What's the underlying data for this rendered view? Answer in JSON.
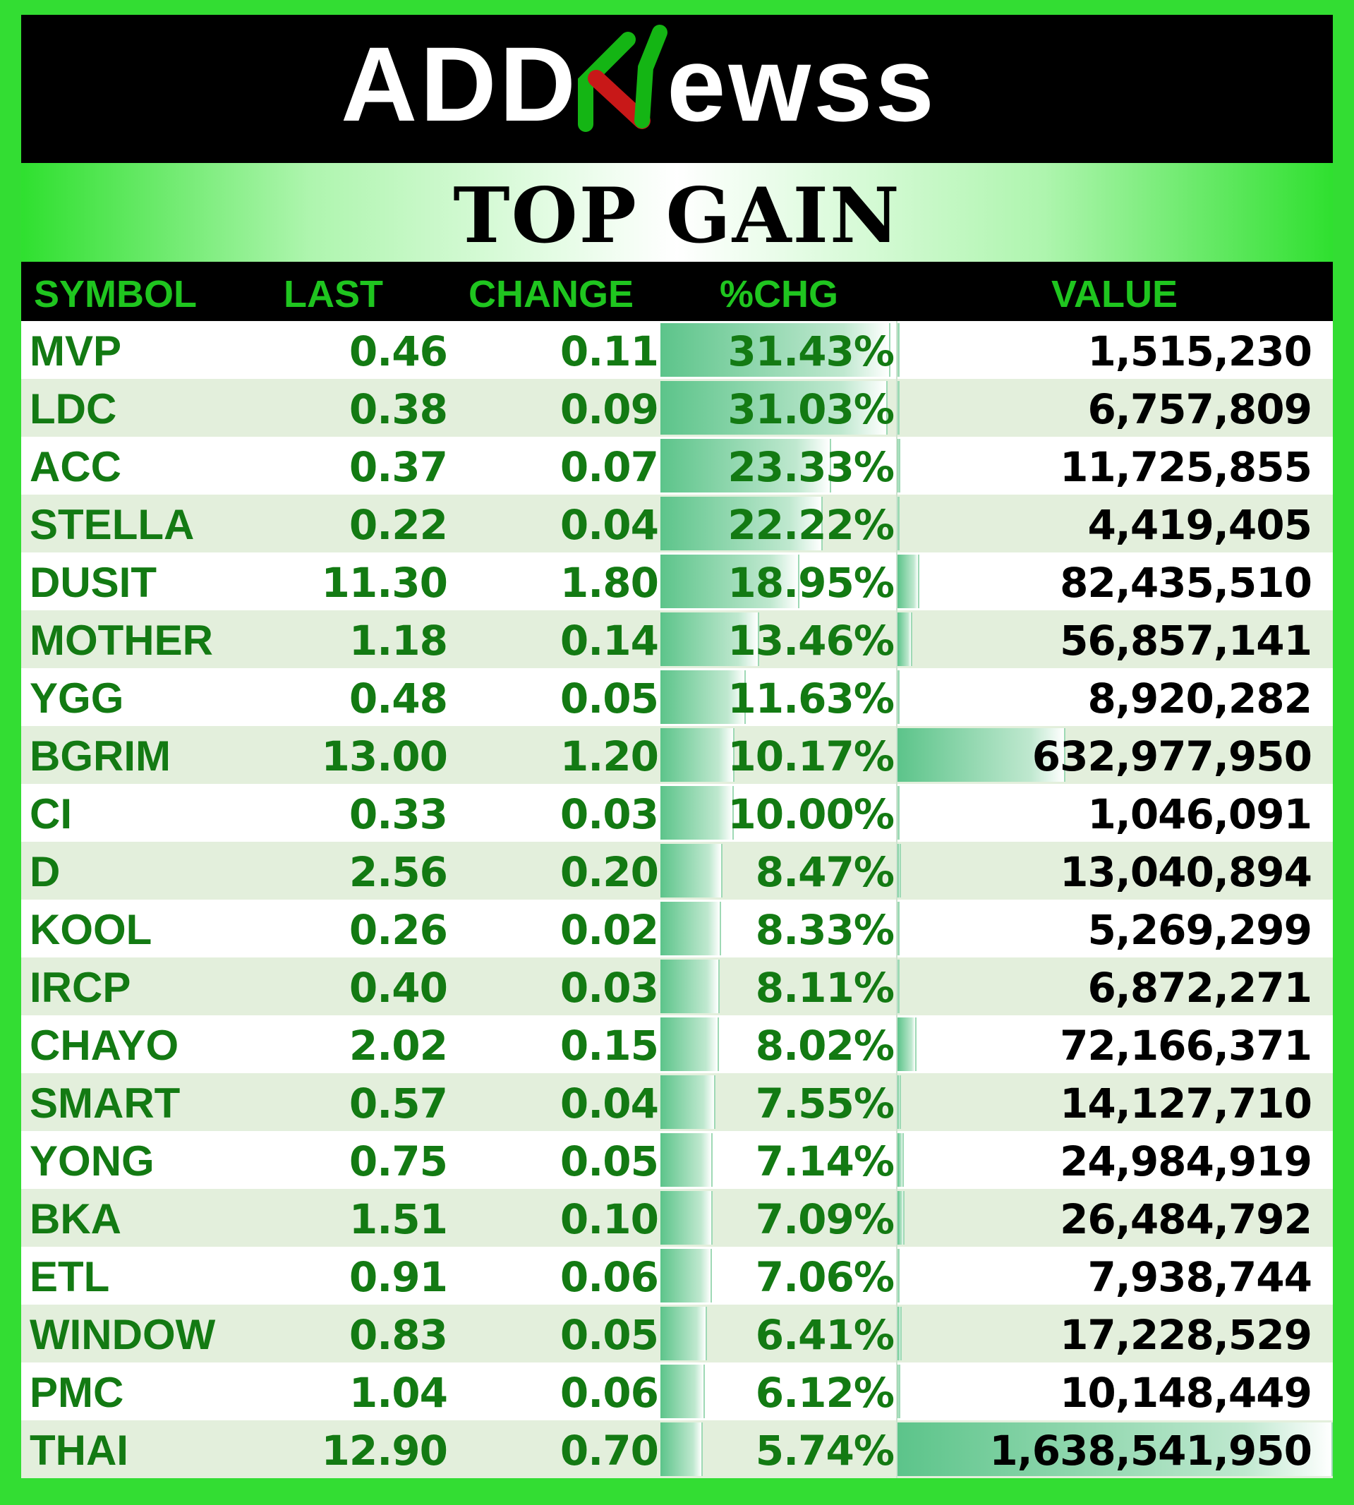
{
  "brand": {
    "logo_text_left": "ADD",
    "logo_text_right": "ewss",
    "logo_accent_red": "#d21a1a",
    "logo_accent_green": "#14b514"
  },
  "title": "TOP GAIN",
  "columns": {
    "symbol": "SYMBOL",
    "last": "LAST",
    "change": "CHANGE",
    "pct": "%CHG",
    "value": "VALUE"
  },
  "colors": {
    "frame_green": "#33dd33",
    "text_green": "#137a13",
    "header_green": "#1fc51f",
    "row_alt": "#e3efdc"
  },
  "rows": [
    {
      "symbol": "MVP",
      "last": "0.46",
      "change": "0.11",
      "pct": "31.43%",
      "value": "1,515,230",
      "pct_num": 31.43,
      "value_num": 1515230
    },
    {
      "symbol": "LDC",
      "last": "0.38",
      "change": "0.09",
      "pct": "31.03%",
      "value": "6,757,809",
      "pct_num": 31.03,
      "value_num": 6757809
    },
    {
      "symbol": "ACC",
      "last": "0.37",
      "change": "0.07",
      "pct": "23.33%",
      "value": "11,725,855",
      "pct_num": 23.33,
      "value_num": 11725855
    },
    {
      "symbol": "STELLA",
      "last": "0.22",
      "change": "0.04",
      "pct": "22.22%",
      "value": "4,419,405",
      "pct_num": 22.22,
      "value_num": 4419405
    },
    {
      "symbol": "DUSIT",
      "last": "11.30",
      "change": "1.80",
      "pct": "18.95%",
      "value": "82,435,510",
      "pct_num": 18.95,
      "value_num": 82435510
    },
    {
      "symbol": "MOTHER",
      "last": "1.18",
      "change": "0.14",
      "pct": "13.46%",
      "value": "56,857,141",
      "pct_num": 13.46,
      "value_num": 56857141
    },
    {
      "symbol": "YGG",
      "last": "0.48",
      "change": "0.05",
      "pct": "11.63%",
      "value": "8,920,282",
      "pct_num": 11.63,
      "value_num": 8920282
    },
    {
      "symbol": "BGRIM",
      "last": "13.00",
      "change": "1.20",
      "pct": "10.17%",
      "value": "632,977,950",
      "pct_num": 10.17,
      "value_num": 632977950
    },
    {
      "symbol": "CI",
      "last": "0.33",
      "change": "0.03",
      "pct": "10.00%",
      "value": "1,046,091",
      "pct_num": 10.0,
      "value_num": 1046091
    },
    {
      "symbol": "D",
      "last": "2.56",
      "change": "0.20",
      "pct": "8.47%",
      "value": "13,040,894",
      "pct_num": 8.47,
      "value_num": 13040894
    },
    {
      "symbol": "KOOL",
      "last": "0.26",
      "change": "0.02",
      "pct": "8.33%",
      "value": "5,269,299",
      "pct_num": 8.33,
      "value_num": 5269299
    },
    {
      "symbol": "IRCP",
      "last": "0.40",
      "change": "0.03",
      "pct": "8.11%",
      "value": "6,872,271",
      "pct_num": 8.11,
      "value_num": 6872271
    },
    {
      "symbol": "CHAYO",
      "last": "2.02",
      "change": "0.15",
      "pct": "8.02%",
      "value": "72,166,371",
      "pct_num": 8.02,
      "value_num": 72166371
    },
    {
      "symbol": "SMART",
      "last": "0.57",
      "change": "0.04",
      "pct": "7.55%",
      "value": "14,127,710",
      "pct_num": 7.55,
      "value_num": 14127710
    },
    {
      "symbol": "YONG",
      "last": "0.75",
      "change": "0.05",
      "pct": "7.14%",
      "value": "24,984,919",
      "pct_num": 7.14,
      "value_num": 24984919
    },
    {
      "symbol": "BKA",
      "last": "1.51",
      "change": "0.10",
      "pct": "7.09%",
      "value": "26,484,792",
      "pct_num": 7.09,
      "value_num": 26484792
    },
    {
      "symbol": "ETL",
      "last": "0.91",
      "change": "0.06",
      "pct": "7.06%",
      "value": "7,938,744",
      "pct_num": 7.06,
      "value_num": 7938744
    },
    {
      "symbol": "WINDOW",
      "last": "0.83",
      "change": "0.05",
      "pct": "6.41%",
      "value": "17,228,529",
      "pct_num": 6.41,
      "value_num": 17228529
    },
    {
      "symbol": "PMC",
      "last": "1.04",
      "change": "0.06",
      "pct": "6.12%",
      "value": "10,148,449",
      "pct_num": 6.12,
      "value_num": 10148449
    },
    {
      "symbol": "THAI",
      "last": "12.90",
      "change": "0.70",
      "pct": "5.74%",
      "value": "1,638,541,950",
      "pct_num": 5.74,
      "value_num": 1638541950
    }
  ]
}
